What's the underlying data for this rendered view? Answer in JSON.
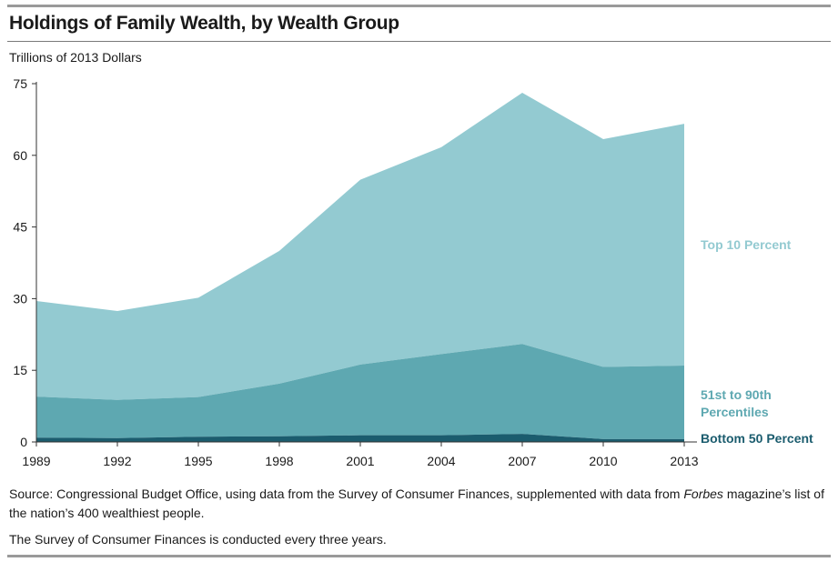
{
  "chart_data": {
    "type": "area",
    "stacked": true,
    "title": "Holdings of Family Wealth, by Wealth Group",
    "ylabel": "Trillions of 2013 Dollars",
    "xlabel": "",
    "x": [
      "1989",
      "1992",
      "1995",
      "1998",
      "2001",
      "2004",
      "2007",
      "2010",
      "2013"
    ],
    "ylim": [
      0,
      75
    ],
    "yticks": [
      "0",
      "15",
      "30",
      "45",
      "60",
      "75"
    ],
    "grid": false,
    "legend": "inline labels at right",
    "series": [
      {
        "name": "Bottom 50 Percent",
        "color": "#1b5c6e",
        "values": [
          0.9,
          0.8,
          1.1,
          1.2,
          1.4,
          1.4,
          1.7,
          0.6,
          0.6
        ]
      },
      {
        "name": "51st to 90th Percentiles",
        "color": "#5ea8b1",
        "values": [
          8.6,
          8.0,
          8.3,
          11.0,
          14.8,
          17.0,
          18.8,
          15.1,
          15.4
        ]
      },
      {
        "name": "Top 10 Percent",
        "color": "#93cad1",
        "values": [
          20.0,
          18.6,
          20.8,
          27.8,
          38.7,
          43.3,
          52.6,
          47.7,
          50.6
        ]
      }
    ],
    "series_labels": [
      "Top 10 Percent",
      "51st to 90th Percentiles",
      "Bottom 50 Percent"
    ]
  },
  "source": {
    "prefix": "Source: Congressional Budget Office, using data from the Survey of Consumer Finances, supplemented with data from ",
    "italic": "Forbes",
    "suffix": " magazine’s list of the nation’s 400 wealthiest people."
  },
  "note": "The Survey of Consumer Finances is conducted every three years."
}
